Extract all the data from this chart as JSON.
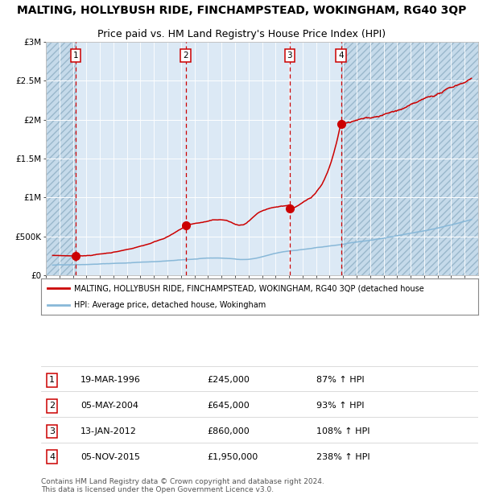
{
  "title": "MALTING, HOLLYBUSH RIDE, FINCHAMPSTEAD, WOKINGHAM, RG40 3QP",
  "subtitle": "Price paid vs. HM Land Registry's House Price Index (HPI)",
  "title_fontsize": 10,
  "subtitle_fontsize": 9,
  "background_color": "#ffffff",
  "plot_bg_color": "#dce9f5",
  "grid_color": "#ffffff",
  "xlim": [
    1994,
    2026
  ],
  "ylim": [
    0,
    3000000
  ],
  "yticks": [
    0,
    500000,
    1000000,
    1500000,
    2000000,
    2500000,
    3000000
  ],
  "ytick_labels": [
    "£0",
    "£500K",
    "£1M",
    "£1.5M",
    "£2M",
    "£2.5M",
    "£3M"
  ],
  "sale_dates": [
    1996.22,
    2004.35,
    2012.04,
    2015.84
  ],
  "sale_prices": [
    245000,
    645000,
    860000,
    1950000
  ],
  "sale_labels": [
    "1",
    "2",
    "3",
    "4"
  ],
  "red_line_color": "#cc0000",
  "blue_line_color": "#88b8d8",
  "dot_color": "#cc0000",
  "dashed_line_color": "#cc0000",
  "legend_red_label": "MALTING, HOLLYBUSH RIDE, FINCHAMPSTEAD, WOKINGHAM, RG40 3QP (detached house",
  "legend_blue_label": "HPI: Average price, detached house, Wokingham",
  "table_rows": [
    [
      "1",
      "19-MAR-1996",
      "£245,000",
      "87% ↑ HPI"
    ],
    [
      "2",
      "05-MAY-2004",
      "£645,000",
      "93% ↑ HPI"
    ],
    [
      "3",
      "13-JAN-2012",
      "£860,000",
      "108% ↑ HPI"
    ],
    [
      "4",
      "05-NOV-2015",
      "£1,950,000",
      "238% ↑ HPI"
    ]
  ],
  "footer_text": "Contains HM Land Registry data © Crown copyright and database right 2024.\nThis data is licensed under the Open Government Licence v3.0."
}
